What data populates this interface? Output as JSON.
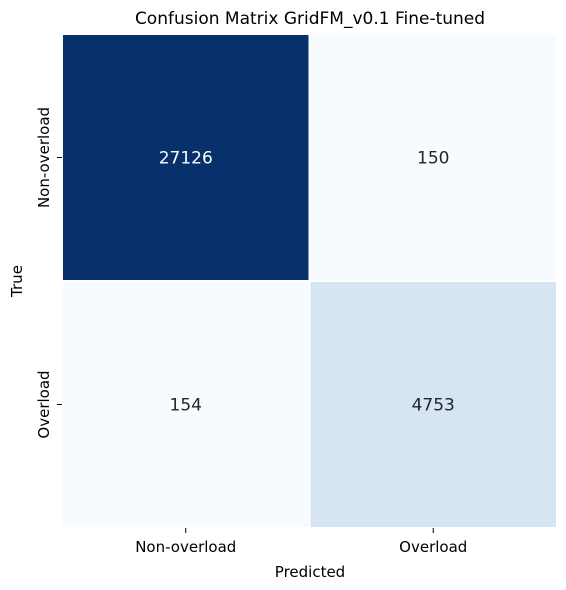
{
  "chart_data": {
    "type": "heatmap",
    "title": "Confusion Matrix GridFM_v0.1 Fine-tuned",
    "xlabel": "Predicted",
    "ylabel": "True",
    "x_categories": [
      "Non-overload",
      "Overload"
    ],
    "y_categories": [
      "Non-overload",
      "Overload"
    ],
    "values": [
      [
        27126,
        150
      ],
      [
        154,
        4753
      ]
    ],
    "colormap": "Blues",
    "colorbar": false
  }
}
